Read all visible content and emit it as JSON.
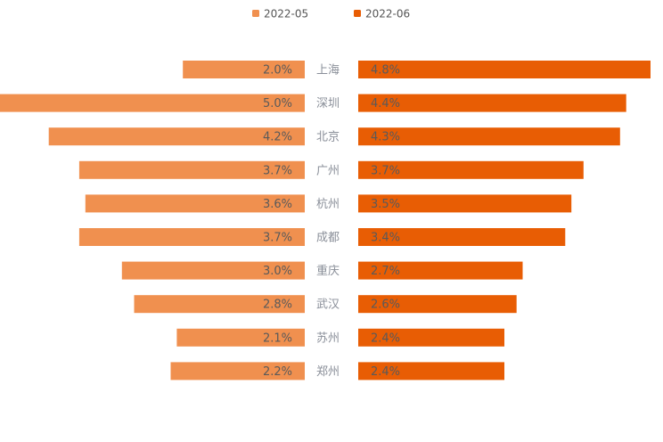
{
  "chart_data": {
    "type": "bar",
    "orientation": "horizontal-butterfly",
    "categories": [
      "上海",
      "深圳",
      "北京",
      "广州",
      "杭州",
      "成都",
      "重庆",
      "武汉",
      "苏州",
      "郑州"
    ],
    "series": [
      {
        "name": "2022-05",
        "color": "#f0904f",
        "values": [
          2.0,
          5.0,
          4.2,
          3.7,
          3.6,
          3.7,
          3.0,
          2.8,
          2.1,
          2.2
        ],
        "labels": [
          "2.0%",
          "5.0%",
          "4.2%",
          "3.7%",
          "3.6%",
          "3.7%",
          "3.0%",
          "2.8%",
          "2.1%",
          "2.2%"
        ]
      },
      {
        "name": "2022-06",
        "color": "#e85d04",
        "values": [
          4.8,
          4.4,
          4.3,
          3.7,
          3.5,
          3.4,
          2.7,
          2.6,
          2.4,
          2.4
        ],
        "labels": [
          "4.8%",
          "4.4%",
          "4.3%",
          "3.7%",
          "3.5%",
          "3.4%",
          "2.7%",
          "2.6%",
          "2.4%",
          "2.4%"
        ]
      }
    ],
    "legend_position": "top-center",
    "grid": false,
    "xlim": [
      0,
      5.0
    ]
  }
}
